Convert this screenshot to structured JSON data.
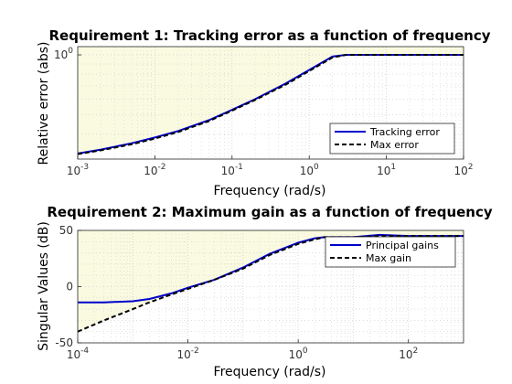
{
  "chart_data": [
    {
      "type": "line",
      "title": "Requirement 1: Tracking error as a function of frequency",
      "xlabel": "Frequency (rad/s)",
      "ylabel": "Relative error (abs)",
      "xscale": "log",
      "yscale": "log",
      "xlim": [
        0.001,
        100
      ],
      "ylim": [
        0.3,
        1.1
      ],
      "x_ticks": [
        {
          "value": 0.001,
          "base": "10",
          "exp": "-3"
        },
        {
          "value": 0.01,
          "base": "10",
          "exp": "-2"
        },
        {
          "value": 0.1,
          "base": "10",
          "exp": "-1"
        },
        {
          "value": 1,
          "base": "10",
          "exp": "0"
        },
        {
          "value": 10,
          "base": "10",
          "exp": "1"
        },
        {
          "value": 100,
          "base": "10",
          "exp": "2"
        }
      ],
      "y_ticks": [
        {
          "value": 1,
          "base": "10",
          "exp": "0"
        }
      ],
      "grid": true,
      "shaded_region": "above max error",
      "shade_color": "#fafae1",
      "legend_position": "bottom-right",
      "series": [
        {
          "name": "Tracking error",
          "color": "#0000cc",
          "style": "solid",
          "x": [
            0.001,
            0.002,
            0.005,
            0.01,
            0.02,
            0.05,
            0.1,
            0.2,
            0.5,
            1,
            2,
            3,
            5,
            10,
            20,
            50,
            100
          ],
          "y": [
            0.32,
            0.335,
            0.36,
            0.385,
            0.415,
            0.47,
            0.53,
            0.6,
            0.72,
            0.84,
            0.98,
            1.0,
            1.0,
            1.0,
            1.0,
            1.0,
            1.0
          ]
        },
        {
          "name": "Max error",
          "color": "#000000",
          "style": "dashed",
          "x": [
            0.001,
            0.002,
            0.005,
            0.01,
            0.02,
            0.05,
            0.1,
            0.2,
            0.5,
            1,
            2,
            3,
            5,
            10,
            20,
            50,
            100
          ],
          "y": [
            0.318,
            0.332,
            0.356,
            0.38,
            0.41,
            0.465,
            0.525,
            0.595,
            0.71,
            0.83,
            0.97,
            1.0,
            1.0,
            1.0,
            1.0,
            1.0,
            1.0
          ]
        }
      ]
    },
    {
      "type": "line",
      "title": "Requirement 2: Maximum gain as a function of frequency",
      "xlabel": "Frequency (rad/s)",
      "ylabel": "Singular Values (dB)",
      "xscale": "log",
      "yscale": "linear",
      "xlim": [
        0.0001,
        1000
      ],
      "ylim": [
        -50,
        50
      ],
      "x_ticks": [
        {
          "value": 0.0001,
          "base": "10",
          "exp": "-4"
        },
        {
          "value": 0.01,
          "base": "10",
          "exp": "-2"
        },
        {
          "value": 1,
          "base": "10",
          "exp": "0"
        },
        {
          "value": 100,
          "base": "10",
          "exp": "2"
        }
      ],
      "y_ticks": [
        {
          "value": 50,
          "label": "50"
        },
        {
          "value": 0,
          "label": "0"
        },
        {
          "value": -50,
          "label": "-50"
        }
      ],
      "grid": true,
      "shaded_region": "above max gain",
      "shade_color": "#fafae1",
      "legend_position": "top-right",
      "series": [
        {
          "name": "Principal gains",
          "color": "#0000cc",
          "style": "solid",
          "x": [
            0.0001,
            0.0003,
            0.001,
            0.002,
            0.005,
            0.01,
            0.03,
            0.1,
            0.3,
            1,
            2,
            3,
            10,
            30,
            100,
            1000
          ],
          "y": [
            -14,
            -14,
            -13,
            -11,
            -6,
            -1,
            6,
            17,
            29,
            39,
            43,
            44,
            44,
            46,
            45,
            45
          ]
        },
        {
          "name": "Max gain",
          "color": "#000000",
          "style": "dashed",
          "x": [
            0.0001,
            0.0003,
            0.001,
            0.002,
            0.005,
            0.01,
            0.03,
            0.1,
            0.3,
            1,
            2,
            3,
            10,
            30,
            100,
            1000
          ],
          "y": [
            -40,
            -30,
            -20,
            -14,
            -7,
            -2,
            6,
            16,
            28,
            38,
            42,
            44,
            44,
            45,
            45,
            45
          ]
        }
      ]
    }
  ]
}
